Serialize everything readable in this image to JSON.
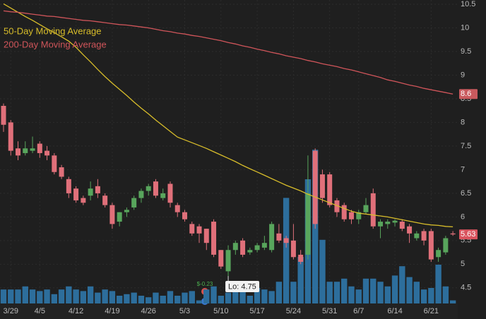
{
  "chart_data": {
    "type": "candlestick",
    "categories": [
      null,
      "3/29",
      null,
      null,
      null,
      "4/5",
      null,
      null,
      null,
      null,
      "4/12",
      null,
      null,
      null,
      null,
      "4/19",
      null,
      null,
      null,
      null,
      "4/26",
      null,
      null,
      null,
      null,
      "5/3",
      null,
      null,
      null,
      null,
      "5/10",
      null,
      null,
      null,
      null,
      "5/17",
      null,
      null,
      null,
      null,
      "5/24",
      null,
      null,
      null,
      null,
      "5/31",
      null,
      null,
      null,
      "6/7",
      null,
      null,
      null,
      null,
      "6/14",
      null,
      null,
      null,
      null,
      "6/21",
      null,
      null,
      null
    ],
    "open": [
      8.35,
      8.0,
      7.45,
      7.35,
      7.4,
      7.55,
      7.4,
      7.3,
      7.05,
      6.8,
      6.6,
      6.4,
      6.45,
      6.65,
      6.45,
      6.25,
      5.9,
      6.1,
      6.2,
      6.4,
      6.55,
      6.75,
      6.4,
      6.7,
      6.25,
      6.1,
      5.85,
      5.8,
      5.75,
      5.9,
      5.3,
      4.85,
      5.3,
      5.5,
      5.25,
      5.3,
      5.35,
      5.3,
      5.65,
      5.55,
      5.5,
      5.2,
      5.2,
      7.4,
      6.9,
      6.9,
      6.35,
      6.25,
      6.1,
      5.95,
      6.1,
      6.5,
      5.8,
      5.85,
      5.88,
      5.9,
      5.8,
      5.55,
      5.7,
      5.7,
      5.15,
      5.25,
      5.65
    ],
    "high": [
      8.4,
      8.05,
      7.6,
      7.6,
      7.7,
      7.6,
      7.5,
      7.35,
      7.1,
      6.85,
      6.65,
      6.45,
      6.75,
      6.8,
      6.5,
      6.3,
      6.1,
      6.2,
      6.45,
      6.6,
      6.7,
      6.8,
      6.6,
      6.75,
      6.3,
      6.15,
      5.9,
      5.85,
      5.75,
      5.95,
      5.3,
      5.4,
      5.5,
      5.55,
      5.35,
      5.45,
      5.6,
      5.9,
      5.85,
      5.6,
      5.85,
      5.3,
      7.3,
      7.45,
      7.0,
      6.95,
      6.4,
      6.3,
      6.15,
      6.15,
      6.4,
      6.6,
      5.95,
      5.95,
      5.95,
      5.95,
      5.85,
      5.7,
      5.75,
      5.75,
      5.35,
      5.6,
      5.7
    ],
    "low": [
      7.8,
      7.3,
      7.2,
      7.3,
      7.35,
      7.25,
      7.2,
      6.9,
      6.8,
      6.4,
      6.3,
      6.25,
      6.35,
      6.4,
      6.2,
      5.75,
      5.8,
      6.0,
      6.15,
      6.3,
      6.45,
      6.4,
      6.35,
      6.2,
      6.0,
      5.9,
      5.6,
      5.45,
      5.3,
      5.15,
      4.9,
      4.75,
      5.2,
      5.15,
      5.2,
      5.25,
      5.3,
      5.25,
      5.45,
      5.35,
      5.1,
      5.0,
      5.1,
      5.75,
      6.3,
      6.2,
      6.0,
      5.9,
      5.85,
      5.85,
      6.05,
      5.75,
      5.55,
      5.75,
      5.8,
      5.7,
      5.45,
      5.5,
      5.4,
      5.05,
      5.05,
      5.2,
      5.6
    ],
    "close": [
      7.95,
      7.4,
      7.3,
      7.45,
      7.45,
      7.35,
      7.3,
      6.95,
      6.85,
      6.5,
      6.35,
      6.3,
      6.6,
      6.5,
      6.25,
      5.85,
      6.1,
      6.15,
      6.4,
      6.55,
      6.65,
      6.45,
      6.5,
      6.3,
      6.1,
      5.95,
      5.65,
      5.65,
      5.45,
      5.2,
      4.95,
      5.3,
      5.45,
      5.2,
      5.3,
      5.4,
      5.45,
      5.85,
      5.5,
      5.45,
      5.15,
      5.05,
      6.5,
      5.85,
      6.4,
      6.25,
      6.1,
      5.95,
      5.95,
      6.1,
      6.25,
      5.8,
      5.9,
      5.9,
      5.92,
      5.75,
      5.65,
      5.65,
      5.5,
      5.1,
      5.3,
      5.55,
      5.63
    ],
    "volume": [
      9,
      9,
      9,
      11,
      9,
      8,
      9,
      6,
      9,
      11,
      9,
      8,
      11,
      7,
      9,
      8,
      5,
      6,
      7,
      5,
      4,
      7,
      5,
      8,
      5,
      7,
      8,
      2,
      9,
      11,
      5,
      7,
      9,
      8,
      5,
      10,
      9,
      8,
      14,
      68,
      14,
      30,
      80,
      99,
      41,
      14,
      14,
      16,
      11,
      9,
      16,
      16,
      14,
      11,
      18,
      24,
      17,
      14,
      9,
      10,
      25,
      11,
      2
    ],
    "volume_lim": [
      0,
      100
    ],
    "volume_color": "#2d6e9c",
    "up_color": "#58a55c",
    "down_color": "#e0707a",
    "series": [
      {
        "name": "50-Day Moving Average",
        "color": "#d8bd2a",
        "values": [
          10.51,
          10.42,
          10.33,
          10.24,
          10.16,
          10.07,
          9.98,
          9.9,
          9.81,
          9.72,
          9.59,
          9.43,
          9.28,
          9.12,
          8.97,
          8.83,
          8.7,
          8.57,
          8.43,
          8.3,
          8.18,
          8.05,
          7.93,
          7.81,
          7.69,
          7.63,
          7.57,
          7.51,
          7.45,
          7.38,
          7.31,
          7.24,
          7.17,
          7.09,
          7.02,
          6.95,
          6.88,
          6.81,
          6.74,
          6.67,
          6.61,
          6.55,
          6.48,
          6.42,
          6.36,
          6.3,
          6.24,
          6.18,
          6.12,
          6.08,
          6.06,
          6.04,
          6.02,
          6.0,
          5.97,
          5.94,
          5.91,
          5.88,
          5.85,
          5.83,
          5.82,
          5.8,
          5.79
        ]
      },
      {
        "name": "200-Day Moving Average",
        "color": "#d0555a",
        "values": [
          10.36,
          10.34,
          10.33,
          10.31,
          10.29,
          10.27,
          10.25,
          10.24,
          10.22,
          10.2,
          10.18,
          10.16,
          10.15,
          10.13,
          10.11,
          10.09,
          10.07,
          10.06,
          10.04,
          10.02,
          10.0,
          9.97,
          9.94,
          9.92,
          9.89,
          9.87,
          9.84,
          9.82,
          9.79,
          9.76,
          9.73,
          9.69,
          9.66,
          9.62,
          9.59,
          9.55,
          9.52,
          9.48,
          9.45,
          9.41,
          9.38,
          9.35,
          9.31,
          9.28,
          9.24,
          9.21,
          9.18,
          9.14,
          9.11,
          9.07,
          9.03,
          8.99,
          8.95,
          8.9,
          8.87,
          8.83,
          8.79,
          8.76,
          8.72,
          8.69,
          8.66,
          8.63,
          8.6
        ]
      }
    ],
    "price_tags": [
      {
        "value": 8.6,
        "color": "#c95a5e"
      },
      {
        "value": 5.63,
        "color": "#d9545e"
      }
    ],
    "low_label": "Lo: 4.75",
    "earnings_label": "$-0.23",
    "ylim": [
      3.84,
      10.59
    ],
    "yticks": [
      4.5,
      5,
      5.5,
      6,
      6.5,
      7,
      7.5,
      8,
      8.5,
      9,
      9.5,
      10,
      10.5
    ],
    "grid": true
  }
}
